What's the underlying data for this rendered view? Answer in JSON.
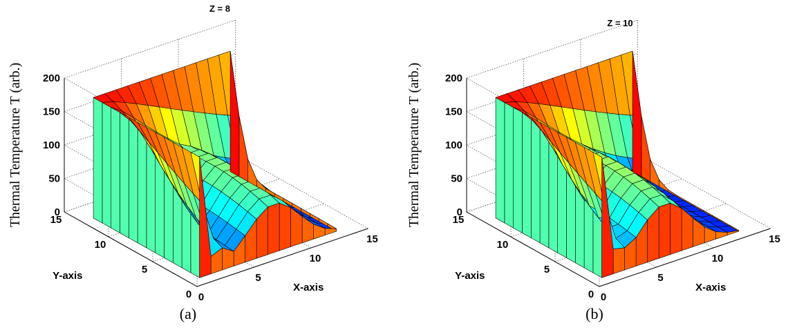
{
  "chart_data": [
    {
      "type": "surface",
      "title": "Z = 8",
      "caption": "(a)",
      "xlabel": "X-axis",
      "ylabel": "Y-axis",
      "zlabel": "Thermal Temperature T (arb.)",
      "xlim": [
        0,
        15
      ],
      "ylim": [
        0,
        15
      ],
      "zlim": [
        0,
        200
      ],
      "xticks": [
        "0",
        "5",
        "10",
        "15"
      ],
      "yticks": [
        "0",
        "5",
        "10",
        "15"
      ],
      "zticks": [
        "0",
        "50",
        "100",
        "150",
        "200"
      ],
      "grid": true,
      "colormap": "jet",
      "x": [
        1,
        2,
        3,
        4,
        5,
        6,
        7,
        8,
        9,
        10,
        11,
        12,
        13
      ],
      "y": [
        1,
        2,
        3,
        4,
        5,
        6,
        7,
        8,
        9,
        10,
        11,
        12,
        13
      ],
      "z_note": "z[row=y index][col=x index], boundary x=1 and y=13 fixed at 180, peak near x=7-8",
      "z_wall": 180,
      "z_peak_value": 125,
      "z_peak_at_x": 7.5
    },
    {
      "type": "surface",
      "title": "Z = 10",
      "caption": "(b)",
      "xlabel": "X-axis",
      "ylabel": "Y-axis",
      "zlabel": "Thermal Temperature T (arb.)",
      "xlim": [
        0,
        15
      ],
      "ylim": [
        0,
        15
      ],
      "zlim": [
        0,
        200
      ],
      "xticks": [
        "0",
        "5",
        "10",
        "15"
      ],
      "yticks": [
        "0",
        "5",
        "10",
        "15"
      ],
      "zticks": [
        "0",
        "50",
        "100",
        "150",
        "200"
      ],
      "grid": true,
      "colormap": "jet",
      "x": [
        1,
        2,
        3,
        4,
        5,
        6,
        7,
        8,
        9,
        10,
        11,
        12,
        13
      ],
      "y": [
        1,
        2,
        3,
        4,
        5,
        6,
        7,
        8,
        9,
        10,
        11,
        12,
        13
      ],
      "z_note": "z[row=y index][col=x index], boundary x=1 and y=13 fixed at 180, peak near x=6-7",
      "z_wall": 180,
      "z_peak_value": 135,
      "z_peak_at_x": 6.5
    }
  ]
}
